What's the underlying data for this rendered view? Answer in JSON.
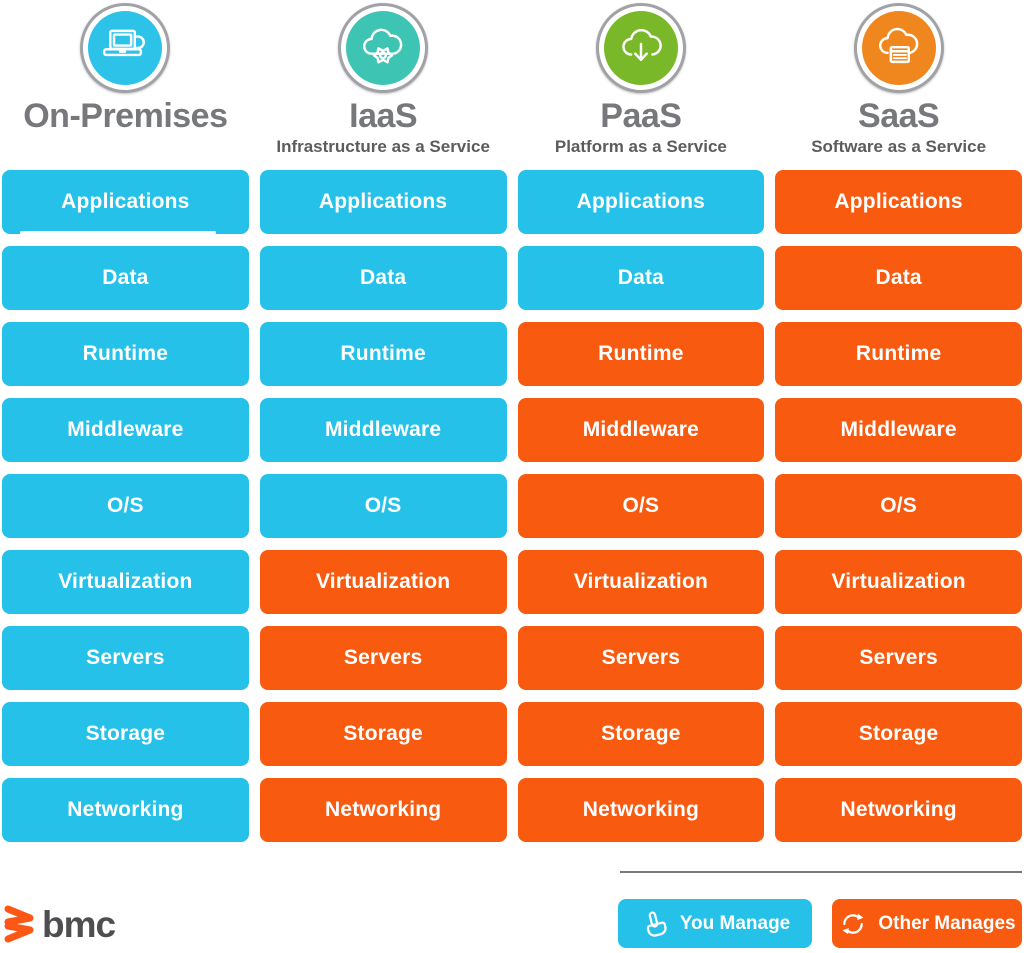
{
  "header": {
    "columns": [
      {
        "id": "on-premises",
        "title": "On-Premises",
        "subtitle": "",
        "icon": "laptop-icon",
        "circle_color": "#2dc3e9"
      },
      {
        "id": "iaas",
        "title": "IaaS",
        "subtitle": "Infrastructure as a Service",
        "icon": "cloud-gear-icon",
        "circle_color": "#3ec4b3"
      },
      {
        "id": "paas",
        "title": "PaaS",
        "subtitle": "Platform as a Service",
        "icon": "cloud-download-icon",
        "circle_color": "#79b828"
      },
      {
        "id": "saas",
        "title": "SaaS",
        "subtitle": "Software as a Service",
        "icon": "cloud-app-icon",
        "circle_color": "#f0871e"
      }
    ]
  },
  "stack": {
    "rows": [
      "Applications",
      "Data",
      "Runtime",
      "Middleware",
      "O/S",
      "Virtualization",
      "Servers",
      "Storage",
      "Networking"
    ],
    "columns": [
      {
        "name": "On-Premises",
        "cells": [
          "you",
          "you",
          "you",
          "you",
          "you",
          "you",
          "you",
          "you",
          "you"
        ]
      },
      {
        "name": "IaaS",
        "cells": [
          "you",
          "you",
          "you",
          "you",
          "you",
          "other",
          "other",
          "other",
          "other"
        ]
      },
      {
        "name": "PaaS",
        "cells": [
          "you",
          "you",
          "other",
          "other",
          "other",
          "other",
          "other",
          "other",
          "other"
        ]
      },
      {
        "name": "SaaS",
        "cells": [
          "other",
          "other",
          "other",
          "other",
          "other",
          "other",
          "other",
          "other",
          "other"
        ]
      }
    ]
  },
  "legend": {
    "you_manage": "You Manage",
    "other_manages": "Other Manages"
  },
  "footer": {
    "brand": "bmc"
  },
  "colors": {
    "you_manage": "#25c1e9",
    "other_manages": "#f85a10",
    "title_gray": "#77787b",
    "subtitle_gray": "#5b5c5e",
    "ring_gray": "#a0a2a5",
    "brand_orange": "#fd5715",
    "brand_gray": "#4d4e50"
  }
}
